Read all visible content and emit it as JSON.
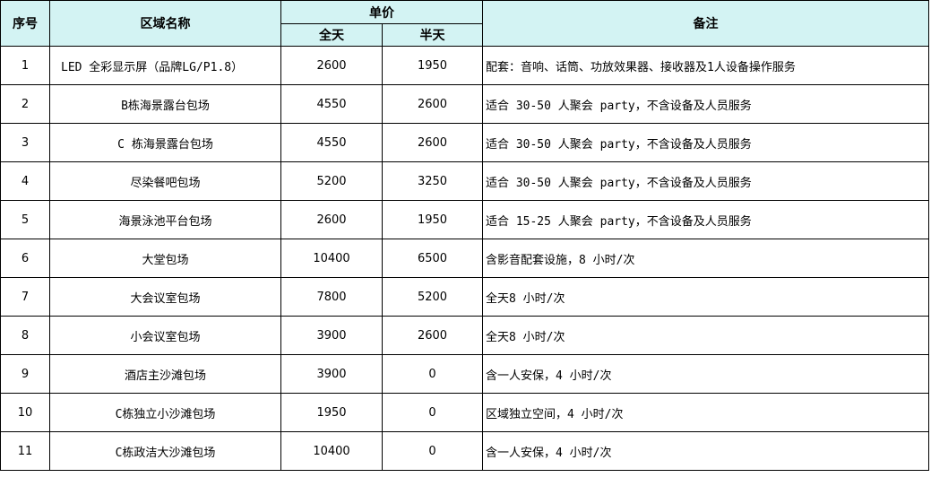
{
  "header": {
    "index": "序号",
    "area": "区域名称",
    "unit_price": "单价",
    "full_day": "全天",
    "half_day": "半天",
    "remarks": "备注"
  },
  "colors": {
    "header_bg": "#d3f3f3",
    "grid": "#000000"
  },
  "rows": [
    {
      "index": "1",
      "area": "LED 全彩显示屏（品牌LG/P1.8）",
      "full": "2600",
      "half": "1950",
      "note": "配套：音响、话筒、功放效果器、接收器及1人设备操作服务"
    },
    {
      "index": "2",
      "area": "B栋海景露台包场",
      "full": "4550",
      "half": "2600",
      "note": "适合 30-50 人聚会 party，不含设备及人员服务"
    },
    {
      "index": "3",
      "area": "C 栋海景露台包场",
      "full": "4550",
      "half": "2600",
      "note": "适合 30-50 人聚会 party，不含设备及人员服务"
    },
    {
      "index": "4",
      "area": "尽染餐吧包场",
      "full": "5200",
      "half": "3250",
      "note": "适合 30-50 人聚会 party，不含设备及人员服务"
    },
    {
      "index": "5",
      "area": "海景泳池平台包场",
      "full": "2600",
      "half": "1950",
      "note": "适合 15-25 人聚会 party，不含设备及人员服务"
    },
    {
      "index": "6",
      "area": "大堂包场",
      "full": "10400",
      "half": "6500",
      "note": "含影音配套设施，8 小时/次"
    },
    {
      "index": "7",
      "area": "大会议室包场",
      "full": "7800",
      "half": "5200",
      "note": "全天8 小时/次"
    },
    {
      "index": "8",
      "area": "小会议室包场",
      "full": "3900",
      "half": "2600",
      "note": "全天8 小时/次"
    },
    {
      "index": "9",
      "area": "酒店主沙滩包场",
      "full": "3900",
      "half": "0",
      "note": "含一人安保，4 小时/次"
    },
    {
      "index": "10",
      "area": "C栋独立小沙滩包场",
      "full": "1950",
      "half": "0",
      "note": "区域独立空间，4 小时/次"
    },
    {
      "index": "11",
      "area": "C栋政洁大沙滩包场",
      "full": "10400",
      "half": "0",
      "note": "含一人安保，4 小时/次"
    }
  ]
}
